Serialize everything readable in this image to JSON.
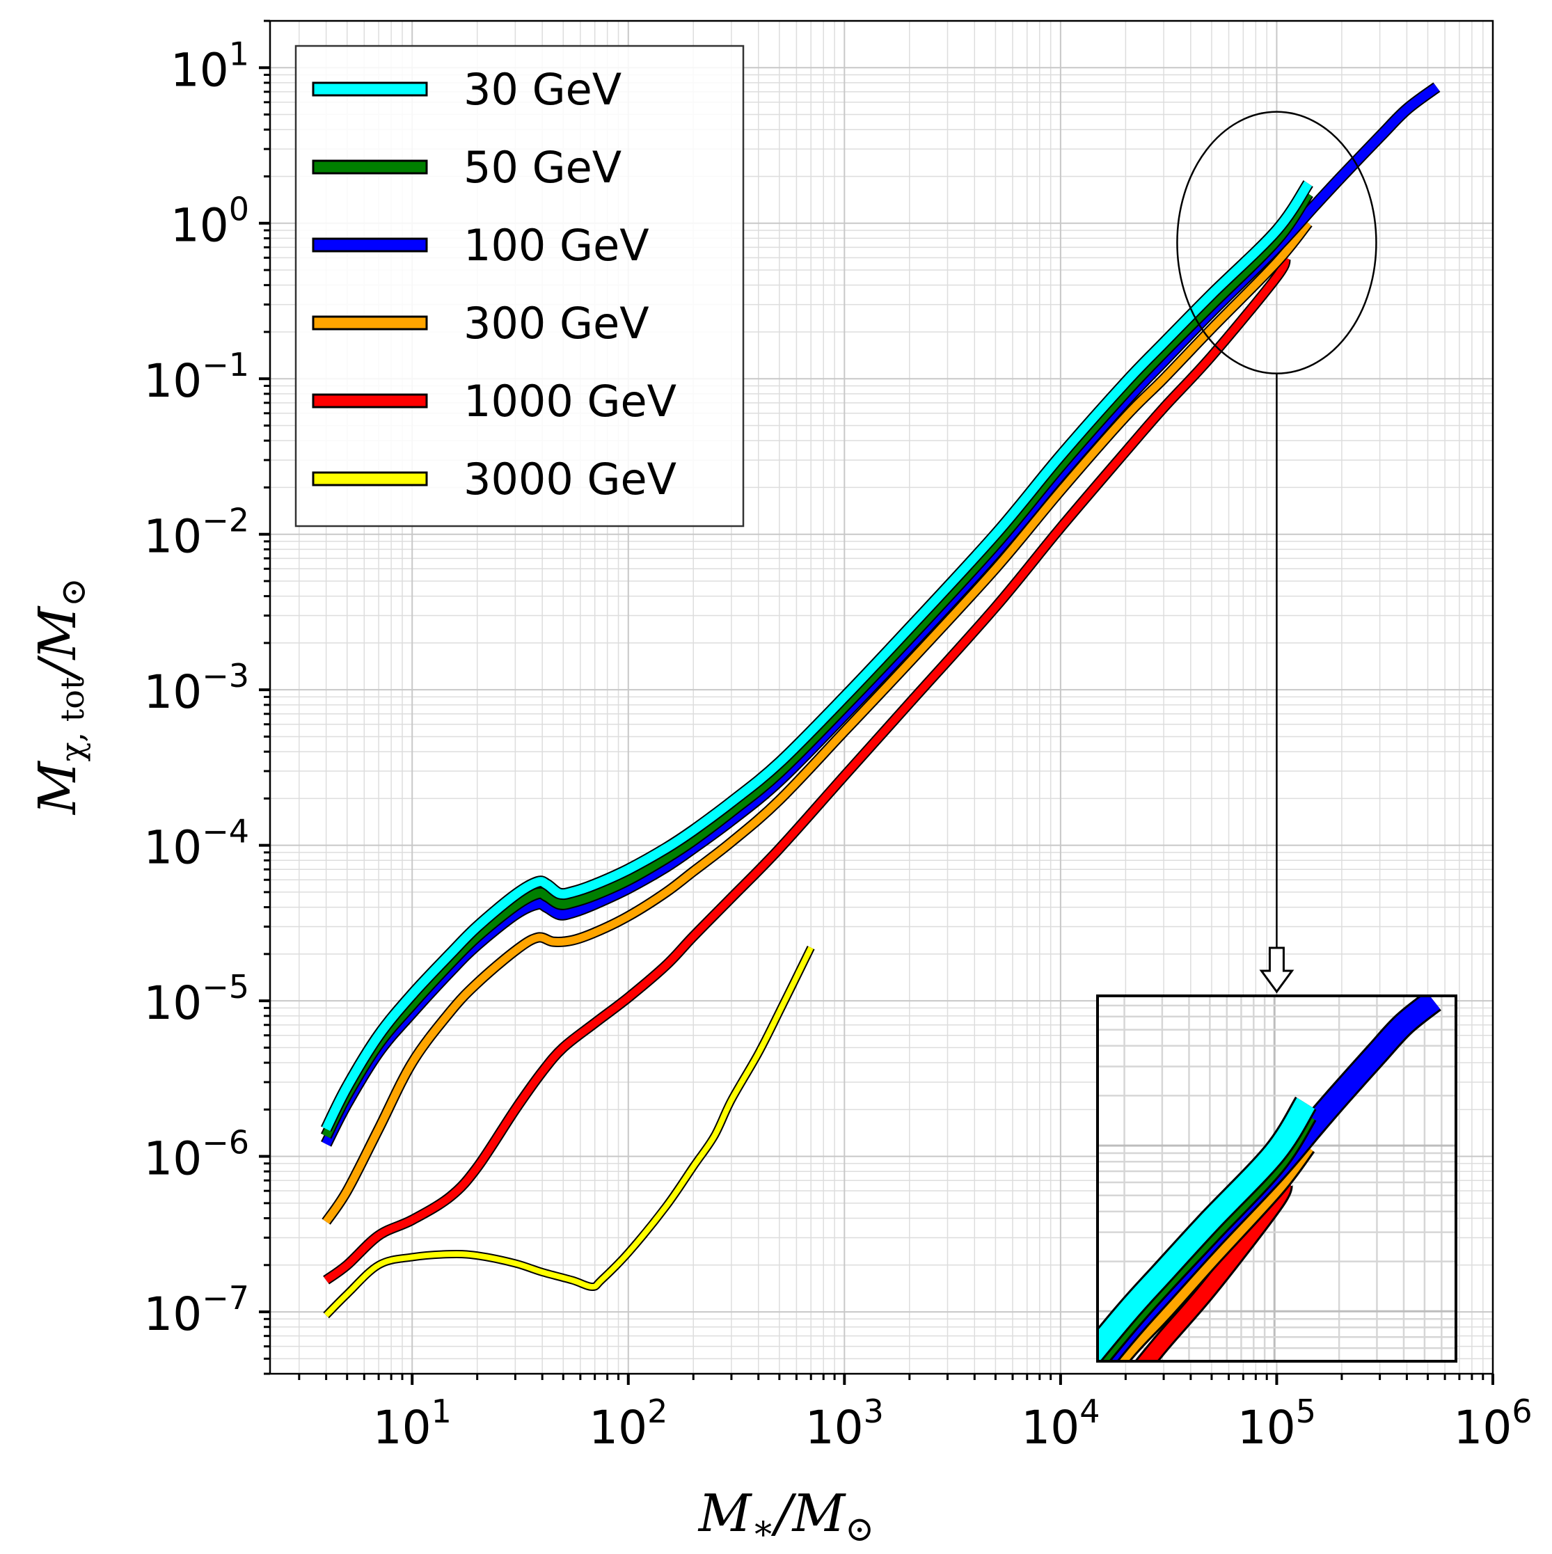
{
  "chart_data": {
    "type": "line",
    "xscale": "log",
    "yscale": "log",
    "xlim": [
      2.2,
      1000000
    ],
    "ylim": [
      4e-08,
      20
    ],
    "x_ticks": [
      {
        "base": "10",
        "exp": "1"
      },
      {
        "base": "10",
        "exp": "2"
      },
      {
        "base": "10",
        "exp": "3"
      },
      {
        "base": "10",
        "exp": "4"
      },
      {
        "base": "10",
        "exp": "5"
      },
      {
        "base": "10",
        "exp": "6"
      }
    ],
    "y_ticks": [
      {
        "base": "10",
        "exp": "−7"
      },
      {
        "base": "10",
        "exp": "−6"
      },
      {
        "base": "10",
        "exp": "−5"
      },
      {
        "base": "10",
        "exp": "−4"
      },
      {
        "base": "10",
        "exp": "−3"
      },
      {
        "base": "10",
        "exp": "−2"
      },
      {
        "base": "10",
        "exp": "−1"
      },
      {
        "base": "10",
        "exp": "0"
      },
      {
        "base": "10",
        "exp": "1"
      }
    ],
    "xlabel": {
      "main": "M",
      "sub": "∗",
      "sep": "/",
      "main2": "M",
      "sub2": "⊙"
    },
    "ylabel": {
      "main": "M",
      "sub": "χ, tot",
      "sep": "/",
      "main2": "M",
      "sub2": "⊙"
    },
    "grid": true,
    "legend_position": "top-left",
    "series": [
      {
        "name": "30 GeV",
        "color": "#00ffff",
        "x": [
          4,
          5,
          7,
          10,
          15,
          20,
          30,
          38,
          42,
          48,
          55,
          70,
          100,
          150,
          200,
          300,
          500,
          1000,
          2000,
          5000,
          10000,
          20000,
          30000,
          50000,
          100000,
          140000
        ],
        "y": [
          1.5e-06,
          2.8e-06,
          6e-06,
          1.1e-05,
          2e-05,
          3e-05,
          4.8e-05,
          5.8e-05,
          5.6e-05,
          4.9e-05,
          5e-05,
          5.6e-05,
          7e-05,
          9.6e-05,
          0.000125,
          0.00019,
          0.00034,
          0.0009,
          0.0025,
          0.01,
          0.032,
          0.095,
          0.17,
          0.35,
          0.9,
          1.8
        ]
      },
      {
        "name": "50 GeV",
        "color": "#007f00",
        "x": [
          4,
          5,
          7,
          10,
          15,
          20,
          30,
          38,
          42,
          48,
          55,
          70,
          100,
          150,
          200,
          300,
          500,
          1000,
          2000,
          5000,
          10000,
          20000,
          30000,
          50000,
          100000,
          140000
        ],
        "y": [
          1.35e-06,
          2.5e-06,
          5.3e-06,
          9.5e-06,
          1.75e-05,
          2.6e-05,
          4.1e-05,
          4.9e-05,
          4.7e-05,
          4.2e-05,
          4.3e-05,
          4.8e-05,
          6e-05,
          8.3e-05,
          0.000108,
          0.000165,
          0.000295,
          0.00078,
          0.00215,
          0.0086,
          0.0275,
          0.082,
          0.148,
          0.3,
          0.78,
          1.55
        ]
      },
      {
        "name": "100 GeV",
        "color": "#0000ff",
        "x": [
          4,
          5,
          7,
          10,
          15,
          20,
          30,
          38,
          42,
          48,
          55,
          70,
          100,
          150,
          200,
          300,
          500,
          1000,
          2000,
          5000,
          10000,
          20000,
          30000,
          50000,
          100000,
          150000,
          200000,
          300000,
          400000,
          550000
        ],
        "y": [
          1.2e-06,
          2.2e-06,
          4.7e-06,
          8.4e-06,
          1.55e-05,
          2.3e-05,
          3.6e-05,
          4.2e-05,
          4e-05,
          3.6e-05,
          3.7e-05,
          4.2e-05,
          5.3e-05,
          7.3e-05,
          9.6e-05,
          0.000145,
          0.00026,
          0.00069,
          0.0019,
          0.0076,
          0.024,
          0.072,
          0.13,
          0.27,
          0.7,
          1.3,
          2.0,
          3.6,
          5.4,
          7.5
        ]
      },
      {
        "name": "300 GeV",
        "color": "#ffa500",
        "x": [
          4,
          5,
          7,
          10,
          15,
          20,
          30,
          38,
          45,
          55,
          70,
          100,
          150,
          200,
          300,
          500,
          1000,
          2000,
          5000,
          10000,
          20000,
          30000,
          50000,
          100000,
          140000
        ],
        "y": [
          3.8e-07,
          6e-07,
          1.5e-06,
          4e-06,
          8.5e-06,
          1.3e-05,
          2.1e-05,
          2.55e-05,
          2.4e-05,
          2.45e-05,
          2.75e-05,
          3.5e-05,
          5e-05,
          6.8e-05,
          0.000105,
          0.000195,
          0.00054,
          0.0015,
          0.006,
          0.019,
          0.057,
          0.1,
          0.21,
          0.56,
          1.0
        ]
      },
      {
        "name": "1000 GeV",
        "color": "#ff0000",
        "x": [
          4,
          5,
          7,
          10,
          15,
          20,
          30,
          40,
          50,
          70,
          100,
          150,
          200,
          300,
          500,
          1000,
          2000,
          5000,
          10000,
          20000,
          30000,
          50000,
          100000,
          110000
        ],
        "y": [
          1.6e-07,
          2e-07,
          3.1e-07,
          3.9e-07,
          5.5e-07,
          8.5e-07,
          2e-06,
          3.5e-06,
          5e-06,
          7.2e-06,
          1.05e-05,
          1.7e-05,
          2.6e-05,
          4.6e-05,
          9.5e-05,
          0.00028,
          0.00082,
          0.0034,
          0.011,
          0.034,
          0.065,
          0.14,
          0.45,
          0.6
        ]
      },
      {
        "name": "3000 GeV",
        "color": "#ffff00",
        "x": [
          4,
          5,
          7,
          10,
          15,
          20,
          30,
          40,
          55,
          68,
          75,
          100,
          150,
          200,
          250,
          300,
          400,
          500,
          700
        ],
        "y": [
          9.5e-08,
          1.3e-07,
          2e-07,
          2.25e-07,
          2.35e-07,
          2.3e-07,
          2.05e-07,
          1.8e-07,
          1.6e-07,
          1.45e-07,
          1.6e-07,
          2.4e-07,
          4.8e-07,
          8.6e-07,
          1.35e-06,
          2.3e-06,
          4.6e-06,
          8.5e-06,
          2.2e-05
        ]
      }
    ],
    "annotations": [
      {
        "type": "ellipse",
        "text": "",
        "center_x": 100000,
        "center_y": 0.75
      },
      {
        "type": "arrow",
        "text": "",
        "from_x": 100000,
        "to_x": 100000
      },
      {
        "type": "inset",
        "text": "",
        "xlim": [
          15000,
          700000
        ],
        "ylim": [
          0.05,
          8
        ]
      }
    ]
  }
}
